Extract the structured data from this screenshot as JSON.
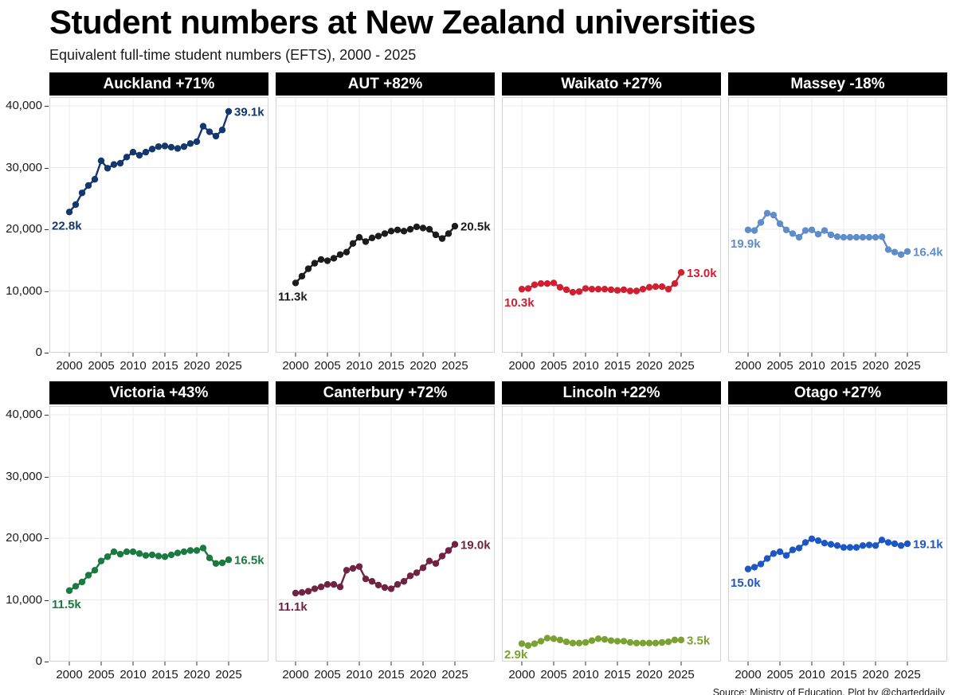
{
  "chart_data": {
    "type": "line",
    "title": "Student numbers at New Zealand universities",
    "subtitle": "Equivalent full-time student numbers (EFTS), 2000 - 2025",
    "source": "Source: Ministry of Education. Plot by @charteddaily",
    "units": "EFTS, thousands",
    "years": [
      2000,
      2001,
      2002,
      2003,
      2004,
      2005,
      2006,
      2007,
      2008,
      2009,
      2010,
      2011,
      2012,
      2013,
      2014,
      2015,
      2016,
      2017,
      2018,
      2019,
      2020,
      2021,
      2022,
      2023,
      2024,
      2025
    ],
    "ylim": [
      0,
      41500
    ],
    "y_ticks": [
      "40,000",
      "30,000",
      "20,000",
      "10,000",
      "0"
    ],
    "x_ticks": [
      "2000",
      "2005",
      "2010",
      "2015",
      "2020",
      "2025"
    ],
    "grid": true,
    "legend": "none",
    "layout": "2 rows x 4 columns of small multiples",
    "panels": [
      {
        "name": "Auckland",
        "title": "Auckland +71%",
        "change": "+71%",
        "color": "#14376e",
        "start_label": "22.8k",
        "end_label": "39.1k",
        "values_thousands": [
          22.8,
          24.0,
          25.9,
          27.1,
          28.1,
          31.1,
          29.9,
          30.5,
          30.7,
          31.7,
          32.5,
          32.0,
          32.5,
          33.0,
          33.4,
          33.5,
          33.3,
          33.1,
          33.4,
          33.9,
          34.2,
          36.7,
          35.8,
          35.1,
          36.1,
          39.1
        ]
      },
      {
        "name": "AUT",
        "title": "AUT +82%",
        "change": "+82%",
        "color": "#1c1c1c",
        "start_label": "11.3k",
        "end_label": "20.5k",
        "values_thousands": [
          11.3,
          12.4,
          13.6,
          14.5,
          15.1,
          14.9,
          15.3,
          15.9,
          16.3,
          17.7,
          18.7,
          18.0,
          18.6,
          18.9,
          19.3,
          19.7,
          19.9,
          19.7,
          20.0,
          20.4,
          20.2,
          20.0,
          19.1,
          18.5,
          19.3,
          20.5
        ]
      },
      {
        "name": "Waikato",
        "title": "Waikato +27%",
        "change": "+27%",
        "color": "#d11f32",
        "start_label": "10.3k",
        "end_label": "13.0k",
        "values_thousands": [
          10.3,
          10.4,
          11.0,
          11.2,
          11.2,
          11.3,
          10.6,
          10.2,
          9.8,
          9.9,
          10.4,
          10.3,
          10.3,
          10.3,
          10.2,
          10.1,
          10.2,
          10.0,
          10.0,
          10.3,
          10.6,
          10.7,
          10.7,
          10.3,
          11.2,
          13.0
        ]
      },
      {
        "name": "Massey",
        "title": "Massey -18%",
        "change": "-18%",
        "color": "#5f8dc9",
        "start_label": "19.9k",
        "end_label": "16.4k",
        "values_thousands": [
          19.9,
          19.8,
          21.1,
          22.6,
          22.3,
          20.9,
          19.9,
          19.3,
          18.7,
          19.8,
          19.9,
          19.2,
          19.8,
          19.1,
          18.8,
          18.7,
          18.7,
          18.7,
          18.7,
          18.7,
          18.7,
          18.8,
          16.7,
          16.3,
          15.9,
          16.4
        ]
      },
      {
        "name": "Victoria",
        "title": "Victoria +43%",
        "change": "+43%",
        "color": "#1b7a40",
        "start_label": "11.5k",
        "end_label": "16.5k",
        "values_thousands": [
          11.5,
          12.2,
          12.9,
          14.0,
          14.8,
          16.3,
          17.0,
          17.8,
          17.4,
          17.8,
          17.8,
          17.5,
          17.2,
          17.3,
          17.1,
          17.0,
          17.3,
          17.6,
          17.8,
          18.0,
          18.0,
          18.4,
          16.8,
          15.9,
          16.0,
          16.5
        ]
      },
      {
        "name": "Canterbury",
        "title": "Canterbury +72%",
        "change": "+72%",
        "color": "#702442",
        "start_label": "11.1k",
        "end_label": "19.0k",
        "values_thousands": [
          11.1,
          11.2,
          11.4,
          11.8,
          12.1,
          12.5,
          12.5,
          12.1,
          14.8,
          15.1,
          15.4,
          13.4,
          13.0,
          12.4,
          12.0,
          11.8,
          12.5,
          13.0,
          13.9,
          14.4,
          15.2,
          16.3,
          15.9,
          17.1,
          18.0,
          19.0
        ]
      },
      {
        "name": "Lincoln",
        "title": "Lincoln +22%",
        "change": "+22%",
        "color": "#7ca133",
        "start_label": "2.9k",
        "end_label": "3.5k",
        "values_thousands": [
          2.9,
          2.6,
          2.9,
          3.3,
          3.8,
          3.7,
          3.5,
          3.2,
          3.0,
          3.0,
          3.1,
          3.4,
          3.7,
          3.6,
          3.4,
          3.3,
          3.3,
          3.1,
          3.0,
          3.0,
          3.0,
          3.0,
          3.1,
          3.2,
          3.5,
          3.5
        ]
      },
      {
        "name": "Otago",
        "title": "Otago +27%",
        "change": "+27%",
        "color": "#1d57c5",
        "start_label": "15.0k",
        "end_label": "19.1k",
        "values_thousands": [
          15.0,
          15.3,
          15.8,
          16.7,
          17.5,
          17.8,
          17.2,
          18.1,
          18.4,
          19.3,
          19.9,
          19.6,
          19.2,
          19.0,
          18.8,
          18.5,
          18.5,
          18.5,
          18.8,
          18.9,
          18.8,
          19.7,
          19.3,
          19.1,
          18.8,
          19.1
        ]
      }
    ],
    "style": {
      "grid_color": "#ebebeb",
      "panel_border_color": "#d4d4d4",
      "panel_header_bg": "#000000",
      "panel_header_text": "#ffffff"
    }
  }
}
